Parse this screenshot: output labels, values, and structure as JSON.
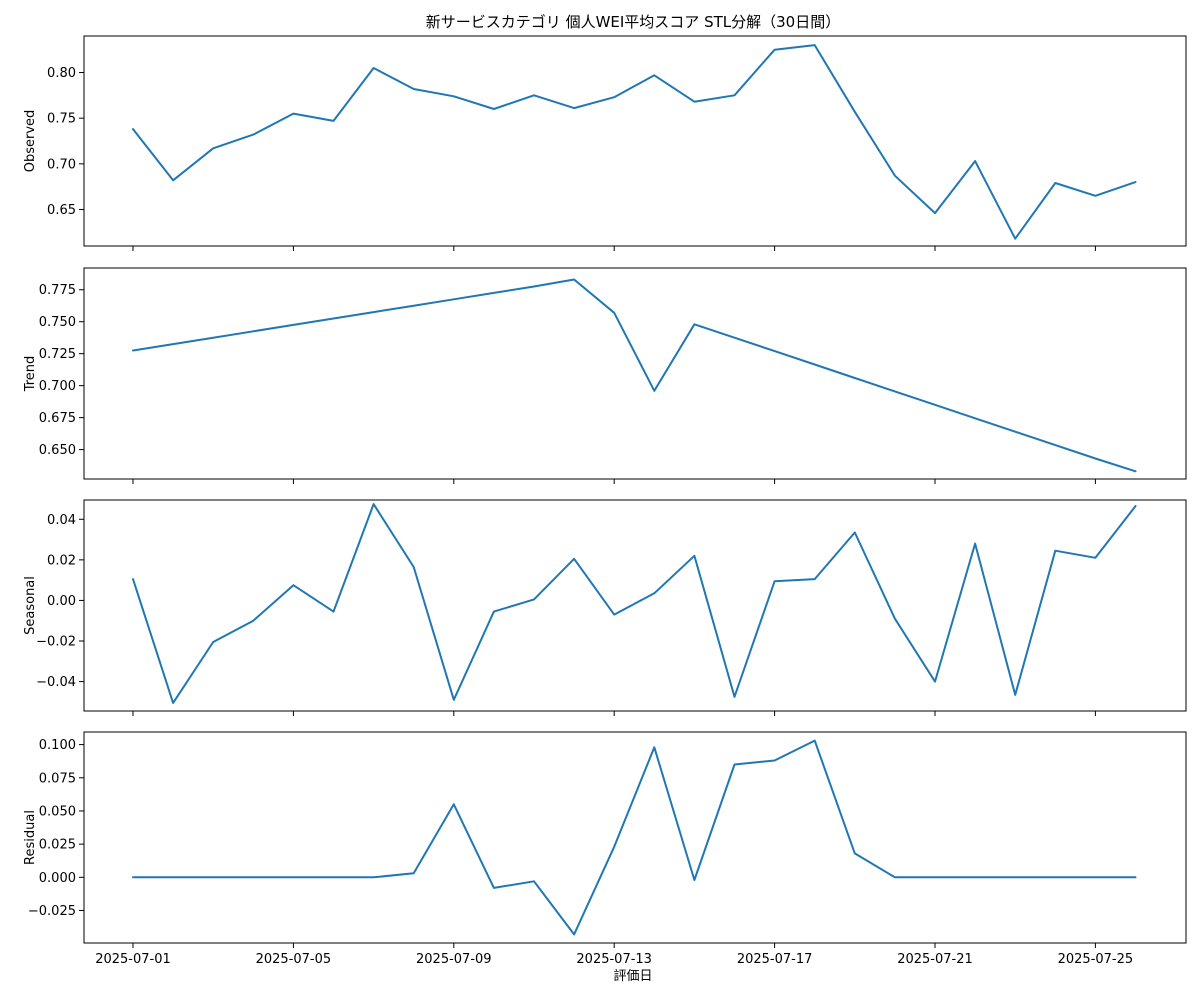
{
  "chart_data": {
    "type": "line",
    "title": "新サービスカテゴリ 個人WEI平均スコア STL分解（30日間）",
    "xlabel": "評価日",
    "x": [
      "2025-07-01",
      "2025-07-02",
      "2025-07-03",
      "2025-07-04",
      "2025-07-05",
      "2025-07-06",
      "2025-07-07",
      "2025-07-08",
      "2025-07-09",
      "2025-07-10",
      "2025-07-11",
      "2025-07-12",
      "2025-07-13",
      "2025-07-14",
      "2025-07-15",
      "2025-07-16",
      "2025-07-17",
      "2025-07-18",
      "2025-07-19",
      "2025-07-20",
      "2025-07-21",
      "2025-07-22",
      "2025-07-23",
      "2025-07-24",
      "2025-07-25",
      "2025-07-26"
    ],
    "x_ticks": [
      "2025-07-01",
      "2025-07-05",
      "2025-07-09",
      "2025-07-13",
      "2025-07-17",
      "2025-07-21",
      "2025-07-25"
    ],
    "panels": [
      {
        "ylabel": "Observed",
        "ylim": [
          0.61,
          0.84
        ],
        "yticks": [
          0.65,
          0.7,
          0.75,
          0.8
        ],
        "ytick_labels": [
          "0.65",
          "0.70",
          "0.75",
          "0.80"
        ],
        "values": [
          0.738,
          0.682,
          0.717,
          0.732,
          0.755,
          0.747,
          0.805,
          0.782,
          0.774,
          0.76,
          0.775,
          0.761,
          0.773,
          0.797,
          0.768,
          0.775,
          0.825,
          0.83,
          0.757,
          0.687,
          0.646,
          0.703,
          0.618,
          0.679,
          0.665,
          0.68
        ]
      },
      {
        "ylabel": "Trend",
        "ylim": [
          0.627,
          0.792
        ],
        "yticks": [
          0.65,
          0.675,
          0.7,
          0.725,
          0.75,
          0.775
        ],
        "ytick_labels": [
          "0.650",
          "0.675",
          "0.700",
          "0.725",
          "0.750",
          "0.775"
        ],
        "values": [
          0.7275,
          0.7325,
          0.7375,
          0.7425,
          0.7475,
          0.7525,
          0.7575,
          0.7625,
          0.7675,
          0.7725,
          0.7775,
          0.783,
          0.757,
          0.696,
          0.748,
          0.7375,
          0.727,
          0.7165,
          0.706,
          0.6955,
          0.685,
          0.6745,
          0.664,
          0.6535,
          0.643,
          0.633
        ]
      },
      {
        "ylabel": "Seasonal",
        "ylim": [
          -0.0545,
          0.0495
        ],
        "yticks": [
          -0.04,
          -0.02,
          0.0,
          0.02,
          0.04
        ],
        "ytick_labels": [
          "−0.04",
          "−0.02",
          "0.00",
          "0.02",
          "0.04"
        ],
        "values": [
          0.0105,
          -0.0505,
          -0.0205,
          -0.01,
          0.0075,
          -0.0055,
          0.0475,
          0.0165,
          -0.049,
          -0.0055,
          0.0005,
          0.0205,
          -0.007,
          0.0035,
          0.022,
          -0.0475,
          0.0095,
          0.0105,
          0.0335,
          -0.009,
          -0.04,
          0.028,
          -0.0465,
          0.0245,
          0.021,
          0.0465
        ]
      },
      {
        "ylabel": "Residual",
        "ylim": [
          -0.0495,
          0.1095
        ],
        "yticks": [
          -0.025,
          0.0,
          0.025,
          0.05,
          0.075,
          0.1
        ],
        "ytick_labels": [
          "−0.025",
          "0.000",
          "0.025",
          "0.050",
          "0.075",
          "0.100"
        ],
        "values": [
          0.0,
          0.0,
          0.0,
          0.0,
          0.0,
          0.0,
          0.0,
          0.003,
          0.055,
          -0.008,
          -0.003,
          -0.043,
          0.023,
          0.098,
          -0.002,
          0.085,
          0.088,
          0.103,
          0.018,
          0.0,
          0.0,
          0.0,
          0.0,
          0.0,
          0.0,
          0.0
        ]
      }
    ],
    "line_color": "#1f77b4",
    "grid": false
  }
}
